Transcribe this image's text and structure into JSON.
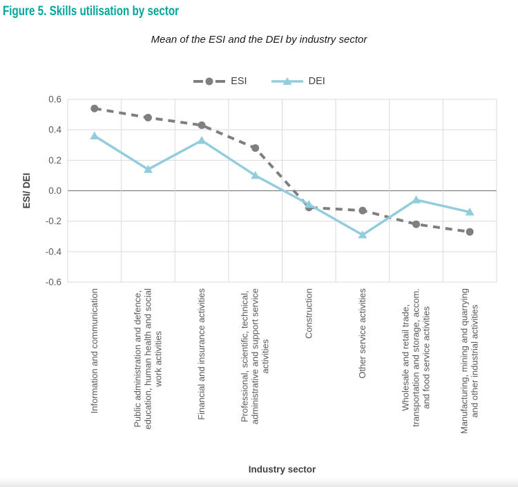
{
  "figure": {
    "title": "Figure 5. Skills utilisation by sector",
    "title_color": "#00a59b"
  },
  "chart_data": {
    "type": "line",
    "title": "Mean of the ESI and the DEI by industry sector",
    "xlabel": "Industry sector",
    "ylabel": "ESI/ DEI",
    "ylim": [
      -0.6,
      0.6
    ],
    "yticks": [
      0.6,
      0.4,
      0.2,
      0,
      -0.2,
      -0.4,
      -0.6
    ],
    "grid": true,
    "grid_color": "#d9d9d9",
    "zero_line_color": "#7f7f7f",
    "legend_position": "top-center",
    "categories": [
      "Information and communication",
      "Public administration and defence, education, human health and social work activities",
      "Financial and insurance activities",
      "Professional, scientific, technical, administrative and support service activities",
      "Construction",
      "Other service activities",
      "Wholesale and retail trade, transportation and storage, accom. and food service activities",
      "Manufacturing, mining and quarrying and other industrial activities"
    ],
    "category_lines": [
      [
        "Information and communication"
      ],
      [
        "Public administration and defence,",
        "education, human health and social",
        "work activities"
      ],
      [
        "Financial and insurance activities"
      ],
      [
        "Professional, scientific, technical,",
        "administrative and support service",
        "activities"
      ],
      [
        "Construction"
      ],
      [
        "Other service activities"
      ],
      [
        "Wholesale and retail trade,",
        "transportation and storage, accom.",
        "and food service activities"
      ],
      [
        "Manufacturing, mining and quarrying",
        "and other industrial activities"
      ]
    ],
    "series": [
      {
        "name": "ESI",
        "color": "#7f7f7f",
        "style": "dashed",
        "marker": "circle",
        "values": [
          0.54,
          0.48,
          0.43,
          0.28,
          -0.11,
          -0.13,
          -0.22,
          -0.27
        ]
      },
      {
        "name": "DEI",
        "color": "#92cdde",
        "style": "solid",
        "marker": "triangle",
        "values": [
          0.36,
          0.14,
          0.33,
          0.1,
          -0.09,
          -0.29,
          -0.06,
          -0.14
        ]
      }
    ]
  }
}
